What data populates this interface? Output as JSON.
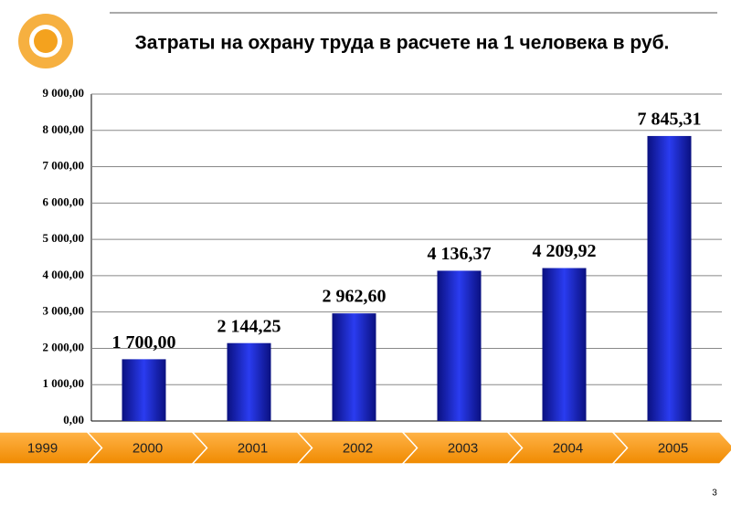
{
  "chart_data": {
    "type": "bar",
    "title": "Затраты на охрану труда в расчете на 1 человека в руб.",
    "categories": [
      "1999",
      "2000",
      "2001",
      "2002",
      "2003",
      "2004",
      "2005"
    ],
    "values": [
      null,
      1700.0,
      2144.25,
      2962.6,
      4136.37,
      4209.92,
      7845.31
    ],
    "value_labels": [
      null,
      "1 700,00",
      "2 144,25",
      "2 962,60",
      "4 136,37",
      "4 209,92",
      "7 845,31"
    ],
    "color": "#1f2fd0",
    "ylim": [
      0,
      9000
    ],
    "yticks": [
      {
        "value": 0,
        "label": "0,00"
      },
      {
        "value": 1000,
        "label": "1 000,00"
      },
      {
        "value": 2000,
        "label": "2 000,00"
      },
      {
        "value": 3000,
        "label": "3 000,00"
      },
      {
        "value": 4000,
        "label": "4 000,00"
      },
      {
        "value": 5000,
        "label": "5 000,00"
      },
      {
        "value": 6000,
        "label": "6 000,00"
      },
      {
        "value": 7000,
        "label": "7 000,00"
      },
      {
        "value": 8000,
        "label": "8 000,00"
      },
      {
        "value": 9000,
        "label": "9 000,00"
      }
    ],
    "grid": true
  },
  "page_number": "3"
}
